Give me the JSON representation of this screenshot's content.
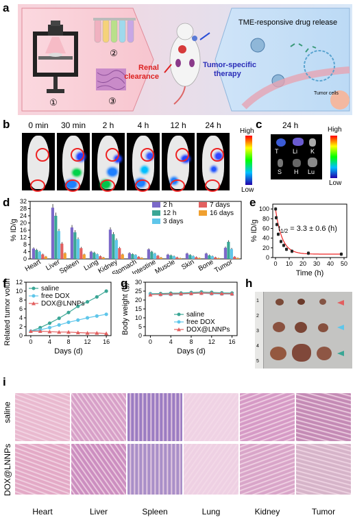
{
  "panels": {
    "a": {
      "label": "a",
      "steps": [
        "①",
        "②",
        "③"
      ],
      "renal": [
        "Renal",
        "clearance"
      ],
      "tumor_therapy": [
        "Tumor-specific",
        "therapy"
      ],
      "tme_title": "TME-responsive drug release",
      "tumor_cells": "Tumor cells"
    },
    "b": {
      "label": "b",
      "times": [
        "0 min",
        "30 min",
        "2 h",
        "4 h",
        "12 h",
        "24 h"
      ],
      "scale_high": "High",
      "scale_low": "Low"
    },
    "c": {
      "label": "c",
      "time": "24 h",
      "organs": [
        "T",
        "Li",
        "K",
        "S",
        "H",
        "Lu"
      ],
      "scale_high": "High",
      "scale_low": "Low"
    },
    "d": {
      "label": "d"
    },
    "e": {
      "label": "e",
      "annotation_t": "t",
      "annotation_sub": "1/2",
      "annotation_rest": "= 3.3  ± 0.6 (h)"
    },
    "f": {
      "label": "f"
    },
    "g": {
      "label": "g"
    },
    "h": {
      "label": "h",
      "ruler_ticks": [
        "1",
        "2",
        "3",
        "4",
        "5"
      ]
    },
    "i": {
      "label": "i",
      "rows": [
        "saline",
        "DOX@LNNPs"
      ],
      "organs": [
        "Heart",
        "Liver",
        "Spleen",
        "Lung",
        "Kidney",
        "Tumor"
      ]
    }
  },
  "chart_data": [
    {
      "id": "d",
      "type": "bar",
      "ylabel": "% ID/g",
      "ylim": [
        0,
        32
      ],
      "yticks": [
        0,
        4,
        8,
        12,
        16,
        20,
        24,
        28,
        32
      ],
      "categories": [
        "Heart",
        "Liver",
        "Spleen",
        "Lung",
        "Kidney",
        "Stomach",
        "Intestine",
        "Muscle",
        "Skin",
        "Bone",
        "Tumor"
      ],
      "legend_position": "top-right",
      "series": [
        {
          "name": "2 h",
          "color": "#7b68c9",
          "values": [
            5.8,
            28.5,
            17.5,
            4.0,
            16.3,
            3.2,
            5.3,
            2.4,
            3.0,
            3.0,
            6.2
          ]
        },
        {
          "name": "12 h",
          "color": "#3aa695",
          "values": [
            5.0,
            24.0,
            14.8,
            3.5,
            13.8,
            2.7,
            4.0,
            2.0,
            2.2,
            2.0,
            9.5
          ]
        },
        {
          "name": "3 days",
          "color": "#5fc6ea",
          "values": [
            4.0,
            15.5,
            11.0,
            2.6,
            10.5,
            2.2,
            3.0,
            1.5,
            1.6,
            1.5,
            5.5
          ]
        },
        {
          "name": "7 days",
          "color": "#e25f5f",
          "values": [
            2.5,
            8.5,
            6.0,
            1.5,
            6.0,
            1.2,
            1.8,
            0.9,
            1.0,
            0.9,
            1.2
          ]
        },
        {
          "name": "16 days",
          "color": "#f0a030",
          "values": [
            1.3,
            3.2,
            2.5,
            0.8,
            2.5,
            0.6,
            0.8,
            0.4,
            0.5,
            0.4,
            0.5
          ]
        }
      ]
    },
    {
      "id": "e",
      "type": "scatter",
      "xlabel": "Time (h)",
      "ylabel": "% ID/g",
      "xlim": [
        -2,
        52
      ],
      "ylim": [
        0,
        110
      ],
      "xticks": [
        0,
        10,
        20,
        30,
        40,
        50
      ],
      "yticks": [
        0,
        20,
        40,
        60,
        80,
        100
      ],
      "x": [
        0.083,
        0.5,
        1,
        2,
        4,
        6,
        8,
        12,
        24,
        48
      ],
      "y": [
        100,
        82,
        68,
        48,
        33,
        25,
        17,
        13,
        9,
        7
      ],
      "fit": "exponential decay"
    },
    {
      "id": "f",
      "type": "line",
      "xlabel": "Days (d)",
      "ylabel": "Related tumor volume",
      "xlim": [
        -1,
        17
      ],
      "ylim": [
        0,
        12
      ],
      "xticks": [
        0,
        4,
        8,
        12,
        16
      ],
      "yticks": [
        0,
        2,
        4,
        6,
        8,
        10,
        12
      ],
      "legend_position": "top-left",
      "x": [
        0,
        2,
        4,
        6,
        8,
        10,
        12,
        14,
        16
      ],
      "series": [
        {
          "name": "saline",
          "color": "#3aa695",
          "marker": "circle",
          "values": [
            1.0,
            1.8,
            2.8,
            3.9,
            5.2,
            6.6,
            7.6,
            8.7,
            10.0
          ]
        },
        {
          "name": "free DOX",
          "color": "#5fc6ea",
          "marker": "circle",
          "values": [
            1.0,
            1.3,
            1.8,
            2.4,
            3.0,
            3.5,
            4.0,
            4.4,
            4.8
          ]
        },
        {
          "name": "DOX@LNNPs",
          "color": "#e25f5f",
          "marker": "triangle",
          "values": [
            1.0,
            1.0,
            0.9,
            0.8,
            0.8,
            0.7,
            0.6,
            0.6,
            0.5
          ]
        }
      ]
    },
    {
      "id": "g",
      "type": "line",
      "xlabel": "Days (d)",
      "ylabel": "Body weight (g)",
      "xlim": [
        -1,
        17
      ],
      "ylim": [
        0,
        30
      ],
      "xticks": [
        0,
        4,
        8,
        12,
        16
      ],
      "yticks": [
        0,
        5,
        10,
        15,
        20,
        25,
        30
      ],
      "legend_position": "bottom-right",
      "x": [
        0,
        2,
        4,
        6,
        8,
        10,
        12,
        14,
        16
      ],
      "series": [
        {
          "name": "saline",
          "color": "#3aa695",
          "marker": "circle",
          "values": [
            23.5,
            23.6,
            23.8,
            23.9,
            24.2,
            24.5,
            24.3,
            24.0,
            23.9
          ]
        },
        {
          "name": "free DOX",
          "color": "#5fc6ea",
          "marker": "circle",
          "values": [
            23.2,
            23.0,
            23.1,
            23.3,
            23.6,
            23.8,
            23.5,
            23.4,
            23.3
          ]
        },
        {
          "name": "DOX@LNNPs",
          "color": "#e25f5f",
          "marker": "triangle",
          "values": [
            23.0,
            23.2,
            23.4,
            23.5,
            23.7,
            23.9,
            23.8,
            23.6,
            23.5
          ]
        }
      ]
    }
  ]
}
